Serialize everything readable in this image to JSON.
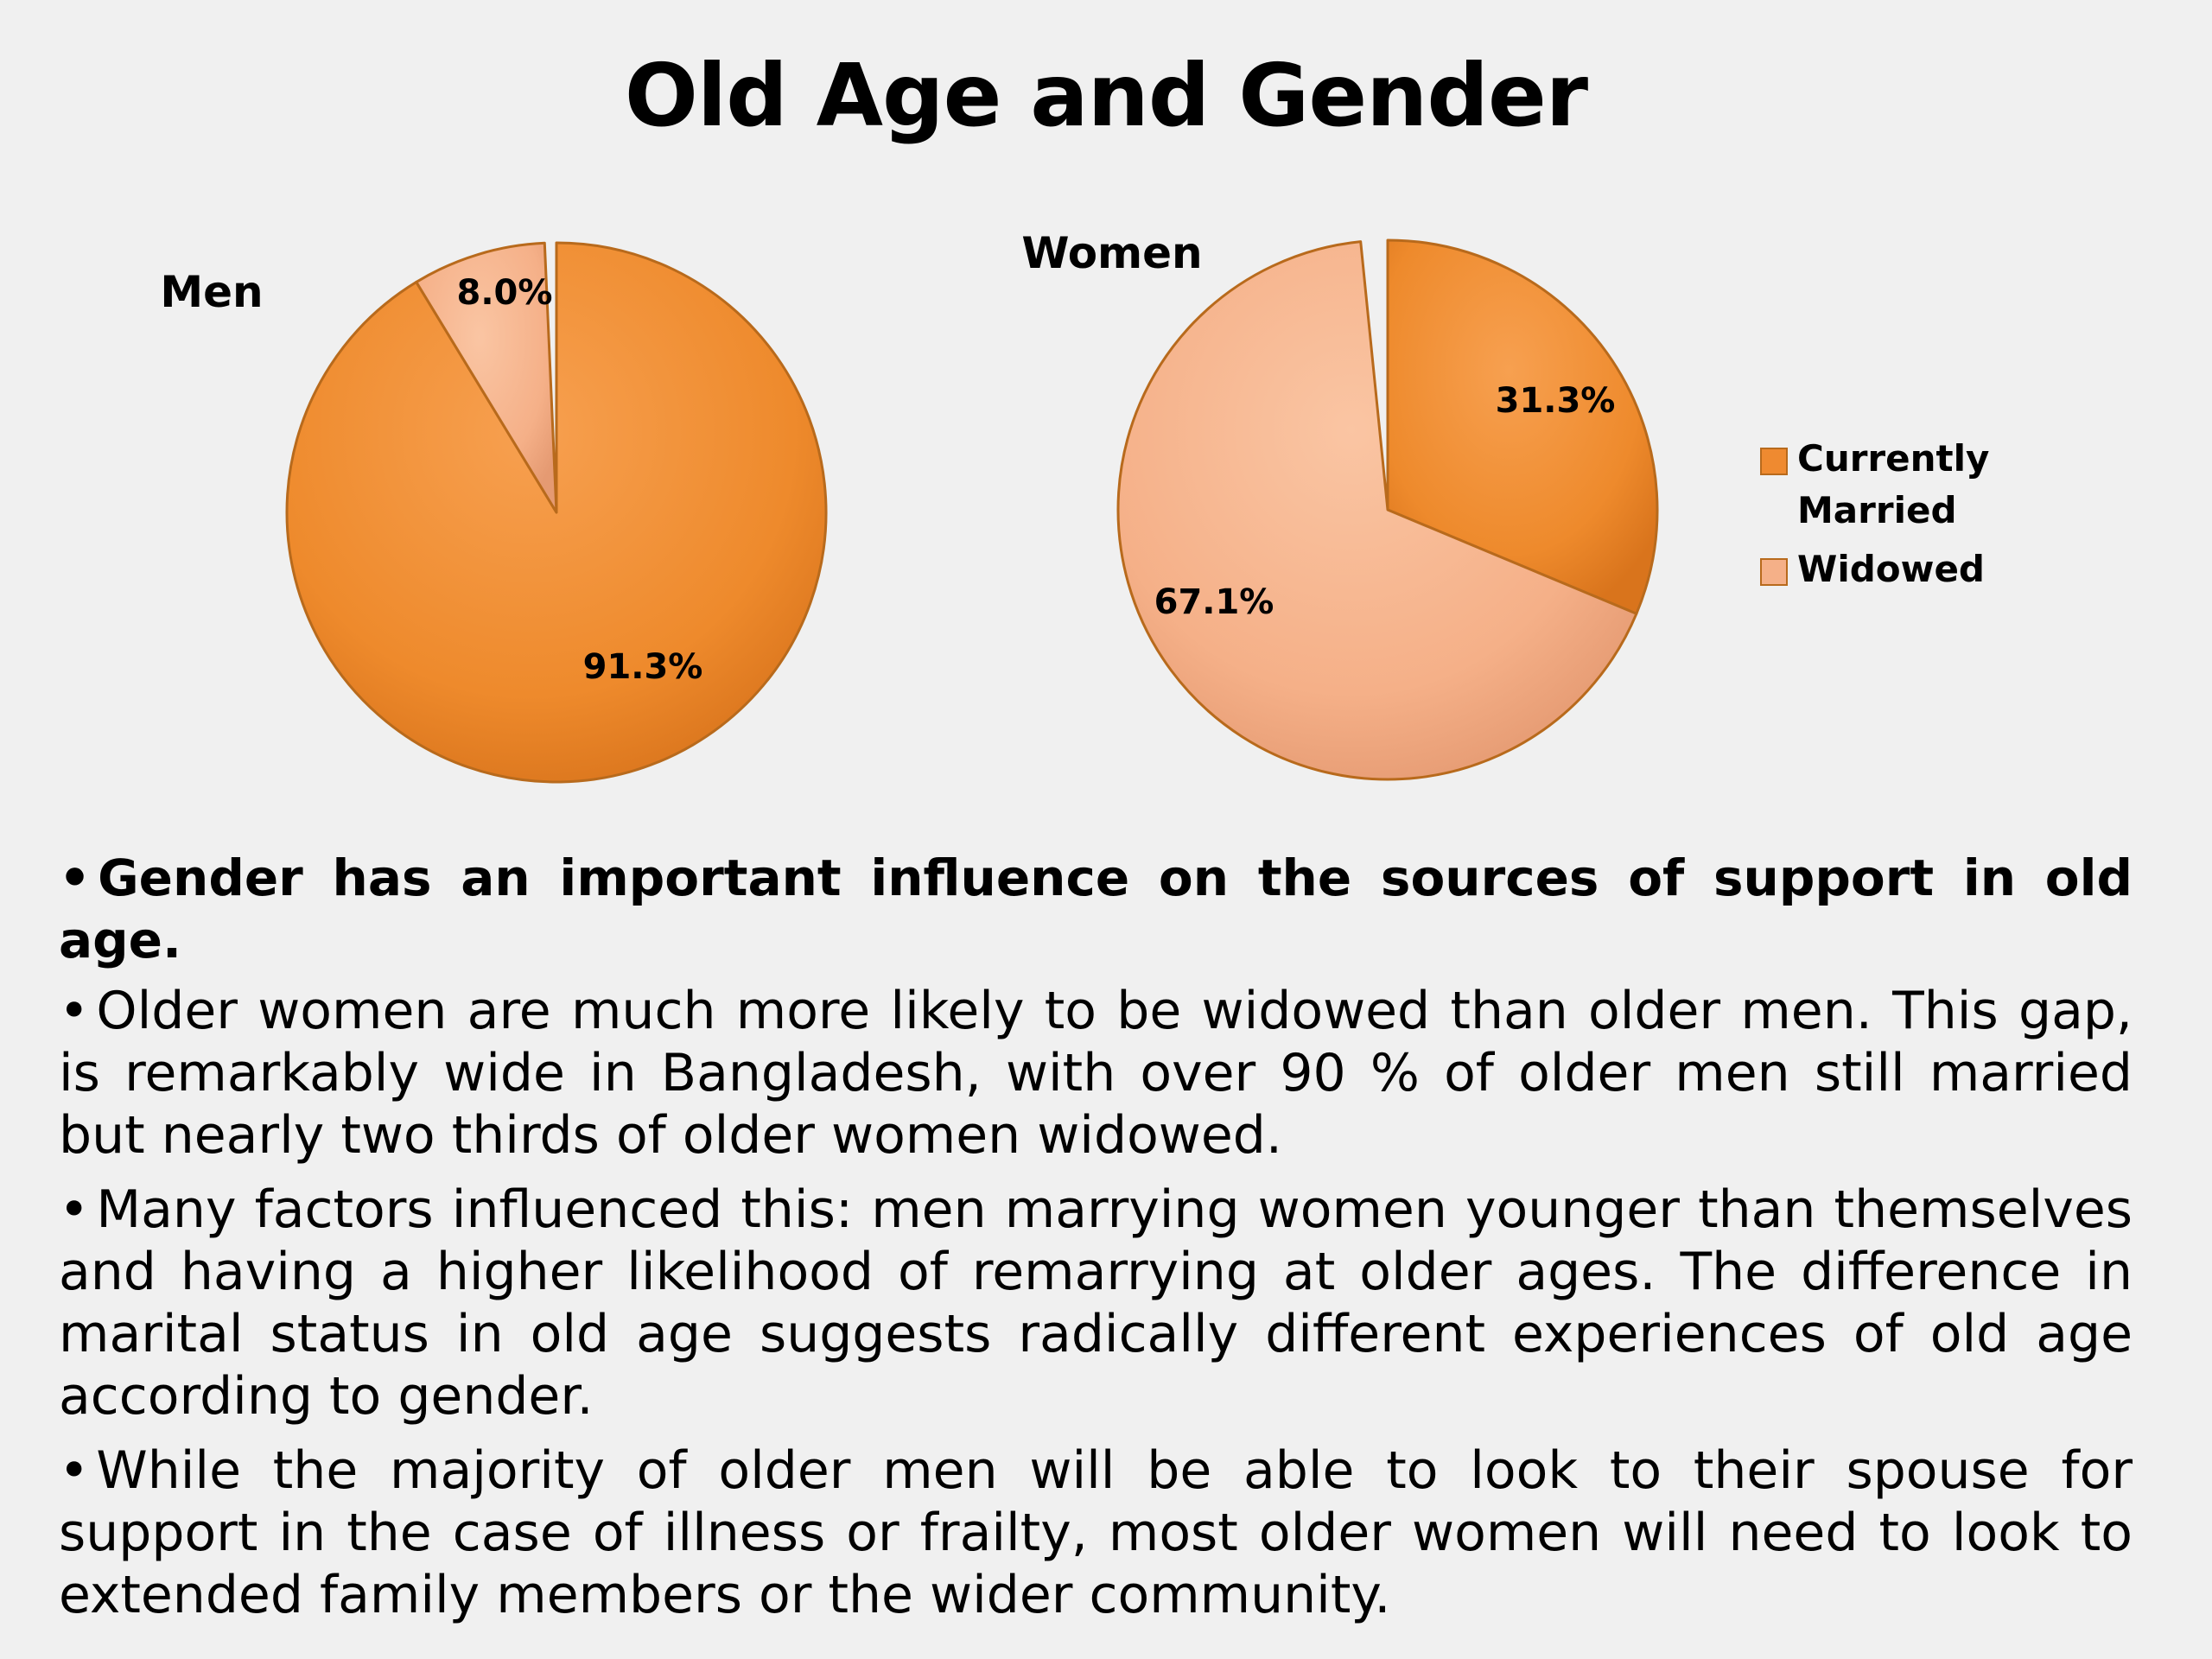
{
  "slide": {
    "title": "Old Age and Gender"
  },
  "chart_data": [
    {
      "type": "pie",
      "title": "Men",
      "categories": [
        "Currently Married",
        "Widowed"
      ],
      "values": [
        91.3,
        8.0
      ],
      "labels": [
        "91.3%",
        "8.0%"
      ],
      "colors": [
        "#ef8a30",
        "#f5b088"
      ]
    },
    {
      "type": "pie",
      "title": "Women",
      "categories": [
        "Currently Married",
        "Widowed"
      ],
      "values": [
        31.3,
        67.1
      ],
      "labels": [
        "31.3%",
        "67.1%"
      ],
      "colors": [
        "#ef8a30",
        "#f5b088"
      ]
    }
  ],
  "legend": {
    "position": "right",
    "items": [
      {
        "line1": "Currently",
        "line2": "Married",
        "color": "#ef8a30"
      },
      {
        "line1": "Widowed",
        "line2": "",
        "color": "#f5b088"
      }
    ]
  },
  "bullets": [
    "Gender has an important influence on the sources of support in old age.",
    "Older women are much more likely to be widowed than older men. This gap, is remarkably wide in Bangladesh, with over 90 % of older men still married but nearly two thirds of older women widowed.",
    "Many factors influenced this: men marrying women younger than themselves and having a higher likelihood of remarrying at older ages. The difference in marital status in old age suggests radically different experiences of old age according to gender.",
    "While the majority of older men will be able to look to their spouse for support in the case of illness or frailty, most older women will need to look to extended family members or the wider community."
  ],
  "bullet_mark": "•"
}
